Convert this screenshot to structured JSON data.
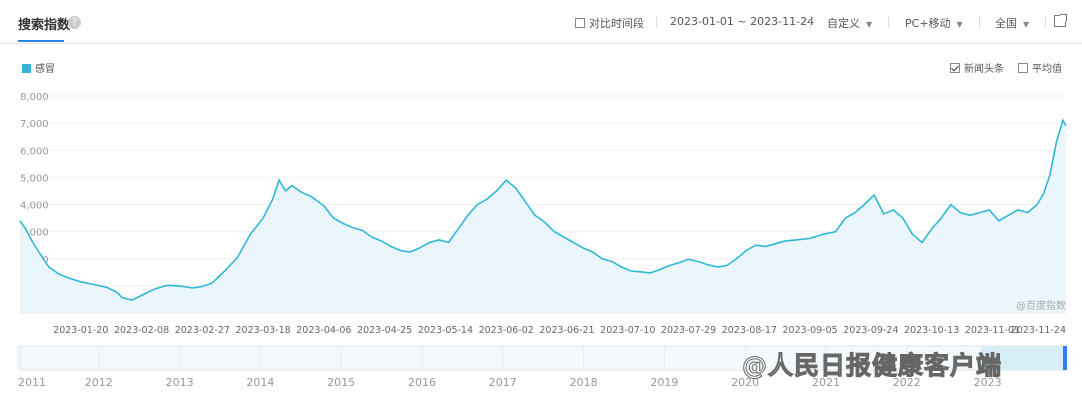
{
  "header": {
    "title": "搜索指数",
    "help": "?",
    "compare_label": "对比时间段",
    "date_range": "2023-01-01 ~ 2023-11-24",
    "custom_label": "自定义",
    "device_label": "PC+移动",
    "region_label": "全国"
  },
  "options": {
    "news_label": "新闻头条",
    "news_checked": true,
    "avg_label": "平均值",
    "avg_checked": false
  },
  "watermarks": {
    "baidu": "@百度指数",
    "people": "@人民日报健康客户端"
  },
  "colors": {
    "line": "#30b7d8",
    "fill": "#eaf6fb",
    "accent": "#2f80ed"
  },
  "chart_data": {
    "type": "area",
    "series": [
      {
        "name": "感冒",
        "points": [
          [
            "2023-01-01",
            3400
          ],
          [
            "2023-01-03",
            3050
          ],
          [
            "2023-01-05",
            2600
          ],
          [
            "2023-01-08",
            2050
          ],
          [
            "2023-01-10",
            1700
          ],
          [
            "2023-01-13",
            1450
          ],
          [
            "2023-01-16",
            1300
          ],
          [
            "2023-01-20",
            1150
          ],
          [
            "2023-01-24",
            1050
          ],
          [
            "2023-01-28",
            950
          ],
          [
            "2023-01-31",
            780
          ],
          [
            "2023-02-02",
            560
          ],
          [
            "2023-02-05",
            480
          ],
          [
            "2023-02-08",
            650
          ],
          [
            "2023-02-12",
            880
          ],
          [
            "2023-02-16",
            1020
          ],
          [
            "2023-02-20",
            1000
          ],
          [
            "2023-02-24",
            920
          ],
          [
            "2023-02-27",
            980
          ],
          [
            "2023-03-02",
            1100
          ],
          [
            "2023-03-06",
            1550
          ],
          [
            "2023-03-10",
            2050
          ],
          [
            "2023-03-14",
            2900
          ],
          [
            "2023-03-18",
            3500
          ],
          [
            "2023-03-21",
            4200
          ],
          [
            "2023-03-23",
            4900
          ],
          [
            "2023-03-25",
            4500
          ],
          [
            "2023-03-27",
            4700
          ],
          [
            "2023-03-30",
            4450
          ],
          [
            "2023-04-02",
            4300
          ],
          [
            "2023-04-06",
            3950
          ],
          [
            "2023-04-09",
            3500
          ],
          [
            "2023-04-12",
            3300
          ],
          [
            "2023-04-15",
            3150
          ],
          [
            "2023-04-18",
            3050
          ],
          [
            "2023-04-21",
            2800
          ],
          [
            "2023-04-24",
            2650
          ],
          [
            "2023-04-27",
            2450
          ],
          [
            "2023-04-30",
            2300
          ],
          [
            "2023-05-03",
            2250
          ],
          [
            "2023-05-06",
            2400
          ],
          [
            "2023-05-09",
            2600
          ],
          [
            "2023-05-12",
            2700
          ],
          [
            "2023-05-15",
            2600
          ],
          [
            "2023-05-18",
            3100
          ],
          [
            "2023-05-21",
            3600
          ],
          [
            "2023-05-24",
            4000
          ],
          [
            "2023-05-27",
            4200
          ],
          [
            "2023-05-30",
            4500
          ],
          [
            "2023-06-02",
            4900
          ],
          [
            "2023-06-05",
            4600
          ],
          [
            "2023-06-08",
            4100
          ],
          [
            "2023-06-11",
            3600
          ],
          [
            "2023-06-14",
            3350
          ],
          [
            "2023-06-17",
            3000
          ],
          [
            "2023-06-20",
            2800
          ],
          [
            "2023-06-23",
            2600
          ],
          [
            "2023-06-26",
            2400
          ],
          [
            "2023-06-29",
            2250
          ],
          [
            "2023-07-02",
            2000
          ],
          [
            "2023-07-05",
            1900
          ],
          [
            "2023-07-08",
            1700
          ],
          [
            "2023-07-11",
            1550
          ],
          [
            "2023-07-14",
            1520
          ],
          [
            "2023-07-17",
            1480
          ],
          [
            "2023-07-20",
            1600
          ],
          [
            "2023-07-23",
            1750
          ],
          [
            "2023-07-26",
            1850
          ],
          [
            "2023-07-29",
            1980
          ],
          [
            "2023-08-01",
            1900
          ],
          [
            "2023-08-04",
            1780
          ],
          [
            "2023-08-07",
            1700
          ],
          [
            "2023-08-10",
            1750
          ],
          [
            "2023-08-13",
            2000
          ],
          [
            "2023-08-16",
            2300
          ],
          [
            "2023-08-19",
            2500
          ],
          [
            "2023-08-22",
            2450
          ],
          [
            "2023-08-25",
            2550
          ],
          [
            "2023-08-28",
            2650
          ],
          [
            "2023-09-01",
            2700
          ],
          [
            "2023-09-05",
            2750
          ],
          [
            "2023-09-09",
            2900
          ],
          [
            "2023-09-13",
            3000
          ],
          [
            "2023-09-16",
            3500
          ],
          [
            "2023-09-19",
            3700
          ],
          [
            "2023-09-22",
            4000
          ],
          [
            "2023-09-25",
            4350
          ],
          [
            "2023-09-28",
            3650
          ],
          [
            "2023-10-01",
            3800
          ],
          [
            "2023-10-04",
            3500
          ],
          [
            "2023-10-07",
            2900
          ],
          [
            "2023-10-10",
            2600
          ],
          [
            "2023-10-13",
            3100
          ],
          [
            "2023-10-16",
            3500
          ],
          [
            "2023-10-19",
            4000
          ],
          [
            "2023-10-22",
            3700
          ],
          [
            "2023-10-25",
            3600
          ],
          [
            "2023-10-28",
            3700
          ],
          [
            "2023-10-31",
            3800
          ],
          [
            "2023-11-03",
            3400
          ],
          [
            "2023-11-06",
            3600
          ],
          [
            "2023-11-09",
            3800
          ],
          [
            "2023-11-12",
            3700
          ],
          [
            "2023-11-15",
            4000
          ],
          [
            "2023-11-17",
            4400
          ],
          [
            "2023-11-19",
            5100
          ],
          [
            "2023-11-21",
            6300
          ],
          [
            "2023-11-23",
            7100
          ],
          [
            "2023-11-24",
            6900
          ]
        ]
      }
    ],
    "yticks": [
      8000,
      7000,
      6000,
      5000,
      4000,
      3000,
      2000,
      1000
    ],
    "ytick_labels": [
      "8,000",
      "7,000",
      "6,000",
      "5,000",
      "4,000",
      "3,000",
      "2,000",
      "1,000"
    ],
    "ylim": [
      0,
      8000
    ],
    "xlim": [
      "2023-01-01",
      "2023-11-24"
    ],
    "xticks": [
      "2023-01-20",
      "2023-02-08",
      "2023-02-27",
      "2023-03-18",
      "2023-04-06",
      "2023-04-25",
      "2023-05-14",
      "2023-06-02",
      "2023-06-21",
      "2023-07-10",
      "2023-07-29",
      "2023-08-17",
      "2023-09-05",
      "2023-09-24",
      "2023-10-13",
      "2023-11-01",
      "2023-11-24"
    ],
    "grid": true,
    "legend": "top-left",
    "overview": {
      "years": [
        "2011",
        "2012",
        "2013",
        "2014",
        "2015",
        "2016",
        "2017",
        "2018",
        "2019",
        "2020",
        "2021",
        "2022",
        "2023"
      ]
    }
  }
}
